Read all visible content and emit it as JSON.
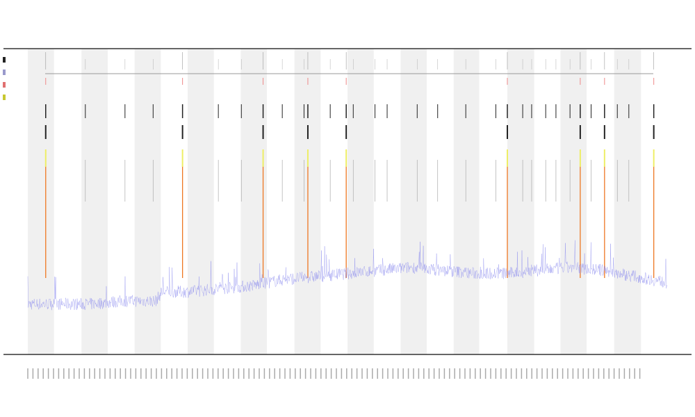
{
  "chart_data": {
    "type": "line",
    "title": "",
    "subtitle_lines": [],
    "xlabel": "",
    "ylabel": "",
    "legend": {
      "placement": "top-left",
      "entries": 4,
      "colors": [
        "#222222",
        "#9a9acc",
        "#e07070",
        "#c8c830"
      ]
    },
    "xlim": [
      0,
      100
    ],
    "ylim": [
      0,
      1
    ],
    "grid": false,
    "shaded_bands": [
      [
        0,
        4.1
      ],
      [
        8.4,
        12.5
      ],
      [
        16.7,
        20.8
      ],
      [
        25,
        29.1
      ],
      [
        33.3,
        37.4
      ],
      [
        41.7,
        45.8
      ],
      [
        50,
        54.1
      ],
      [
        58.3,
        62.4
      ],
      [
        66.6,
        70.6
      ],
      [
        75,
        79.2
      ],
      [
        83.3,
        87.4
      ],
      [
        91.7,
        95.9
      ]
    ],
    "series": [
      {
        "color": "#8888ee",
        "x": [
          0,
          5,
          10,
          15,
          20,
          21,
          25,
          30,
          35,
          40,
          45,
          50,
          55,
          60,
          65,
          70,
          75,
          80,
          85,
          90,
          95,
          100
        ],
        "values": [
          0.16,
          0.16,
          0.16,
          0.17,
          0.17,
          0.2,
          0.2,
          0.21,
          0.22,
          0.24,
          0.25,
          0.26,
          0.27,
          0.28,
          0.27,
          0.26,
          0.26,
          0.27,
          0.28,
          0.27,
          0.25,
          0.23
        ]
      }
    ],
    "major_events": [
      2.8,
      24.2,
      36.8,
      43.8,
      49.8,
      75,
      86.4,
      90.2,
      97.9
    ],
    "minor_events": [
      9,
      15.2,
      19.6,
      29.8,
      33.4,
      39.8,
      43.2,
      47.3,
      50.9,
      54.3,
      56.2,
      60.9,
      64.1,
      68.5,
      73.2,
      77.4,
      78.8,
      81,
      82.6,
      84.8,
      88.1,
      92.2,
      94
    ],
    "colors": {
      "band": "#f0f0f0",
      "major_event": "#ee7722",
      "event_tick": "#222222",
      "highlight": "#eeee66",
      "axis": "#555555"
    }
  }
}
